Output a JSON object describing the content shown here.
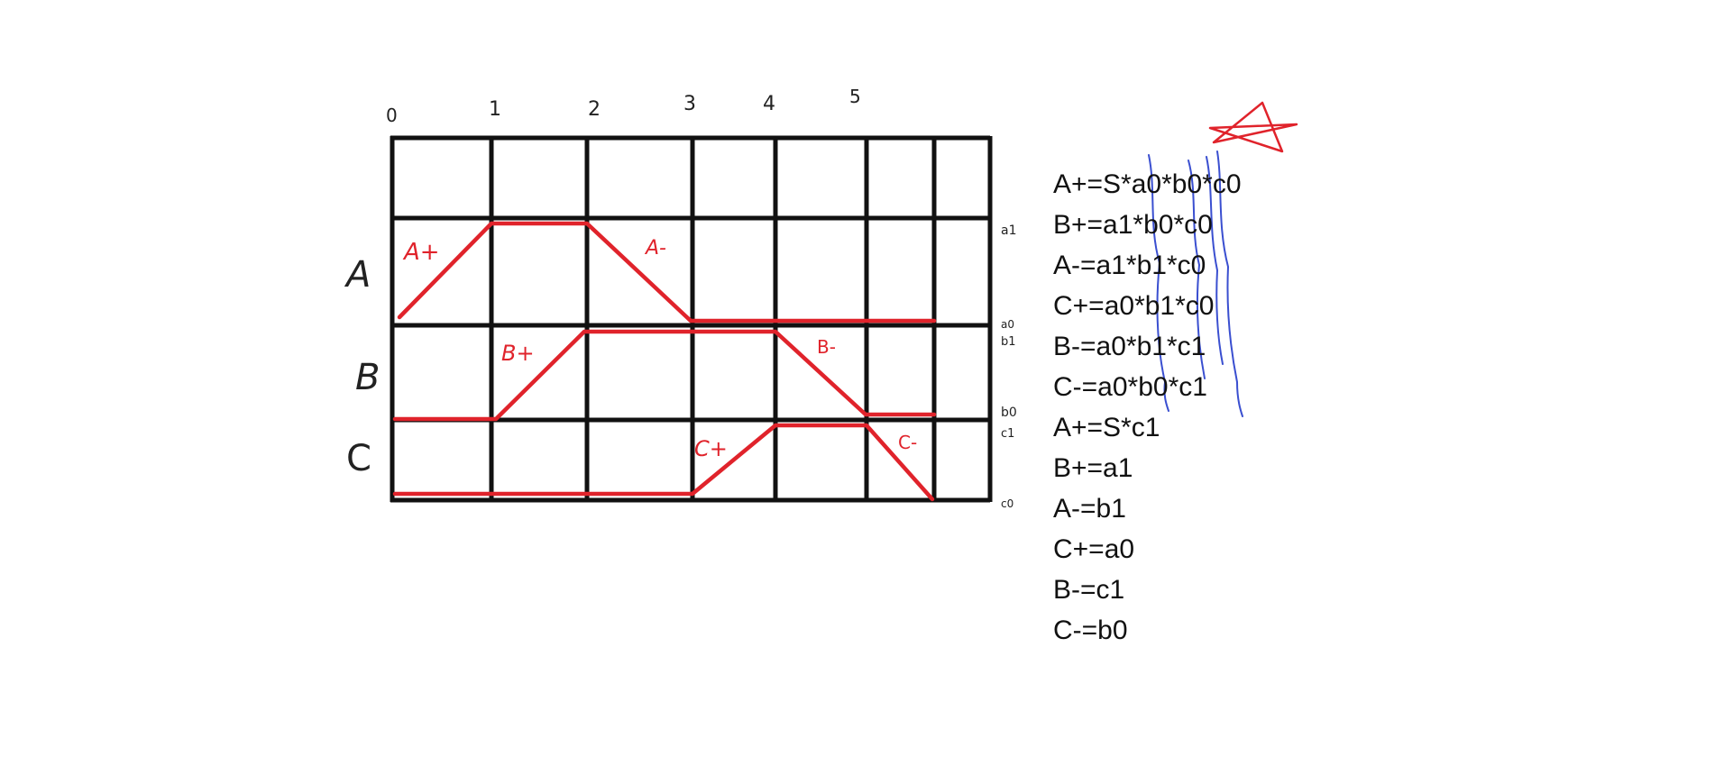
{
  "diagram": {
    "step_labels": [
      "0",
      "1",
      "2",
      "3",
      "4",
      "5"
    ],
    "row_labels": [
      "A",
      "B",
      "C"
    ],
    "sensor_labels": [
      "a1",
      "a0",
      "b1",
      "b0",
      "c1",
      "c0"
    ],
    "segment_labels": [
      "A+",
      "A-",
      "B+",
      "B-",
      "C+",
      "C-"
    ]
  },
  "equations": {
    "full": [
      "A+=S*a0*b0*c0",
      "B+=a1*b0*c0",
      "A-=a1*b1*c0",
      "C+=a0*b1*c0",
      "B-=a0*b1*c1",
      "C-=a0*b0*c1"
    ],
    "simplified": [
      "A+=S*c1",
      "B+=a1",
      "A-=b1",
      "C+=a0",
      "B-=c1",
      "C-=b0"
    ]
  },
  "colors": {
    "grid": "#111111",
    "timing": "#e0232b",
    "strike": "#3a4fd0"
  },
  "icons": [
    "star-icon"
  ]
}
